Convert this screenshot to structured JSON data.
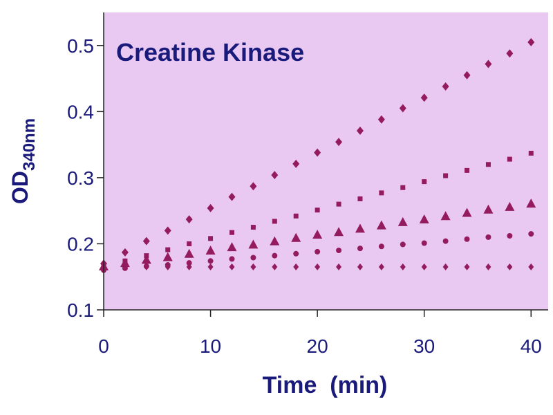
{
  "chart_data": {
    "type": "line",
    "title": "Creatine Kinase",
    "xlabel": "Time  (min)",
    "ylabel": "OD",
    "ylabel_sub": "340nm",
    "x": [
      0,
      2,
      4,
      6,
      8,
      10,
      12,
      14,
      16,
      18,
      20,
      22,
      24,
      26,
      28,
      30,
      32,
      34,
      36,
      38,
      40
    ],
    "series": [
      {
        "color": "#931b5e",
        "marker": "diamond",
        "values": [
          0.17,
          0.187,
          0.204,
          0.22,
          0.237,
          0.254,
          0.271,
          0.287,
          0.304,
          0.321,
          0.338,
          0.354,
          0.371,
          0.388,
          0.405,
          0.421,
          0.438,
          0.455,
          0.472,
          0.488,
          0.505
        ]
      },
      {
        "color": "#931b5e",
        "marker": "square",
        "values": [
          0.165,
          0.174,
          0.182,
          0.191,
          0.2,
          0.208,
          0.217,
          0.225,
          0.234,
          0.242,
          0.251,
          0.26,
          0.268,
          0.277,
          0.285,
          0.294,
          0.303,
          0.311,
          0.32,
          0.328,
          0.337
        ]
      },
      {
        "color": "#931b5e",
        "marker": "triangle",
        "values": [
          0.165,
          0.17,
          0.175,
          0.179,
          0.184,
          0.189,
          0.194,
          0.198,
          0.203,
          0.208,
          0.213,
          0.217,
          0.222,
          0.227,
          0.232,
          0.236,
          0.241,
          0.246,
          0.251,
          0.255,
          0.26
        ]
      },
      {
        "color": "#931b5e",
        "marker": "circle",
        "values": [
          0.16,
          0.163,
          0.166,
          0.168,
          0.171,
          0.174,
          0.177,
          0.179,
          0.182,
          0.185,
          0.188,
          0.19,
          0.193,
          0.196,
          0.199,
          0.201,
          0.204,
          0.207,
          0.21,
          0.212,
          0.215
        ]
      },
      {
        "color": "#931b5e",
        "marker": "diamond-small",
        "values": [
          0.165,
          0.165,
          0.165,
          0.165,
          0.165,
          0.165,
          0.165,
          0.165,
          0.165,
          0.165,
          0.165,
          0.165,
          0.165,
          0.165,
          0.165,
          0.165,
          0.165,
          0.165,
          0.165,
          0.165,
          0.165
        ]
      }
    ],
    "xlim": [
      0,
      41.6
    ],
    "ylim": [
      0.1,
      0.55
    ],
    "xticks": [
      0,
      10,
      20,
      30,
      40
    ],
    "yticks": [
      0.1,
      0.2,
      0.3,
      0.4,
      0.5
    ],
    "plot_background": "#e9c9f2"
  }
}
